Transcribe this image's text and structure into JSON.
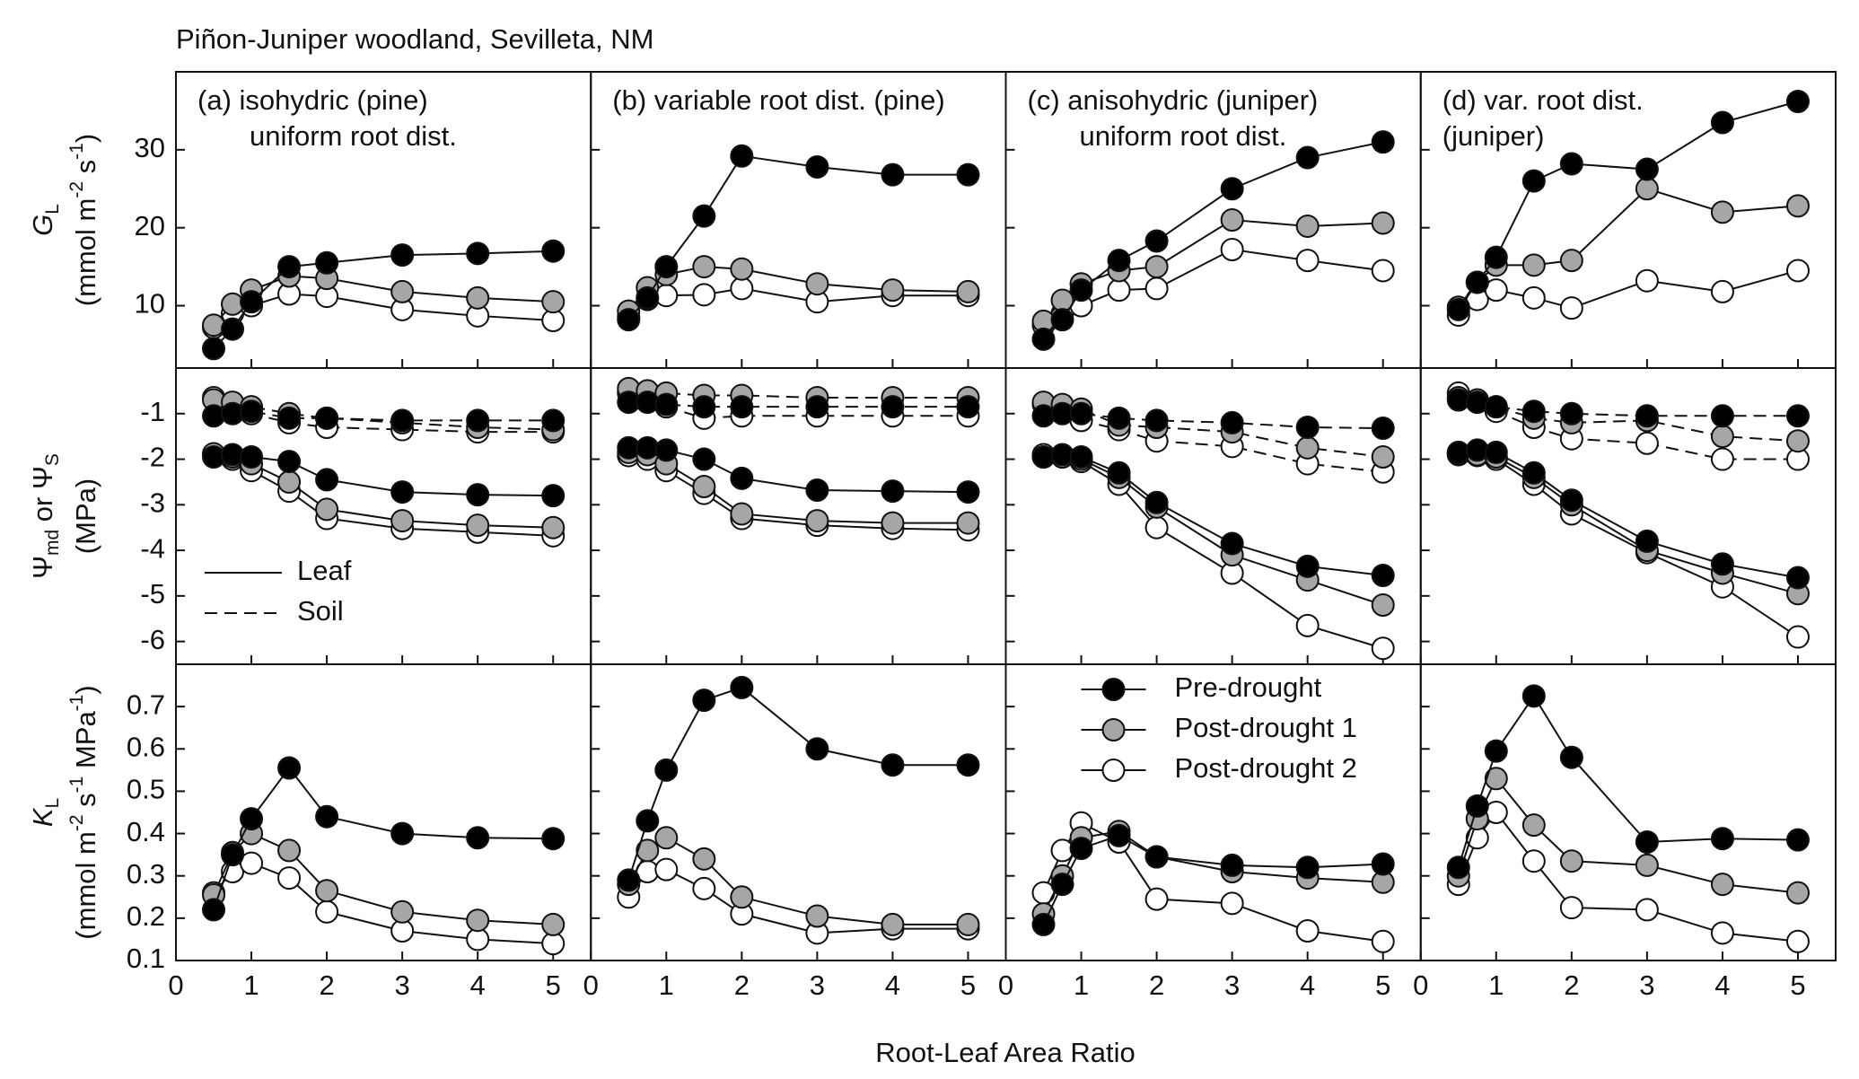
{
  "chart_data": {
    "type": "line",
    "title": "Piñon-Juniper woodland, Sevilleta, NM",
    "x_label": "Root-Leaf Area Ratio",
    "x": [
      0.5,
      0.75,
      1,
      1.5,
      2,
      3,
      4,
      5
    ],
    "xlim": [
      0,
      5.5
    ],
    "xticks": [
      0,
      1,
      2,
      3,
      4,
      5
    ],
    "series": [
      {
        "name": "Pre-drought",
        "color": "#000000"
      },
      {
        "name": "Post-drought 1",
        "color": "#a6a6a6"
      },
      {
        "name": "Post-drought 2",
        "color": "#ffffff"
      }
    ],
    "styles": [
      {
        "name": "Leaf",
        "dashed": false
      },
      {
        "name": "Soil",
        "dashed": true
      }
    ],
    "rows": [
      {
        "y_label": [
          [
            "G",
            "L"
          ],
          [
            "(mmol m",
            "-2",
            " s",
            "-1",
            ")"
          ]
        ],
        "ylim": [
          2,
          40
        ],
        "yticks": [
          10,
          20,
          30
        ],
        "panels": [
          {
            "label": [
              "(a) isohydric (pine)",
              "uniform root dist."
            ],
            "lines": [
              [
                [
                  4.5,
                  7,
                  10.5,
                  15,
                  15.5,
                  16.5,
                  16.7,
                  17
                ],
                [
                  7.5,
                  10.2,
                  12,
                  13.8,
                  13.5,
                  11.8,
                  11,
                  10.5
                ],
                [
                  7.2,
                  9,
                  10,
                  11.5,
                  11.2,
                  9.5,
                  8.7,
                  8.1
                ]
              ]
            ]
          },
          {
            "label": [
              "(b) variable root dist. (pine)"
            ],
            "lines": [
              [
                [
                  8.2,
                  11,
                  15,
                  21.5,
                  29.2,
                  27.8,
                  26.8,
                  26.8
                ],
                [
                  9.3,
                  12.3,
                  14,
                  15,
                  14.7,
                  12.8,
                  12,
                  11.8
                ],
                [
                  8.5,
                  10.8,
                  11.3,
                  11.4,
                  12.2,
                  10.5,
                  11.3,
                  11.3
                ]
              ]
            ]
          },
          {
            "label": [
              "(c) anisohydric (juniper)",
              "uniform root dist."
            ],
            "lines": [
              [
                [
                  5.7,
                  8.2,
                  12,
                  15.8,
                  18.3,
                  25,
                  29,
                  31
                ],
                [
                  8,
                  10.7,
                  12.8,
                  14.5,
                  15,
                  21,
                  20.2,
                  20.6
                ],
                [
                  7.5,
                  9,
                  10,
                  12,
                  12.2,
                  17.2,
                  15.8,
                  14.5
                ]
              ]
            ]
          },
          {
            "label": [
              "(d) var. root dist.",
              "(juniper)"
            ],
            "lines": [
              [
                [
                  9.5,
                  13,
                  16.2,
                  26,
                  28.2,
                  27.5,
                  33.5,
                  36.2
                ],
                [
                  9.8,
                  13,
                  15.2,
                  15.2,
                  15.8,
                  25,
                  22,
                  22.8
                ],
                [
                  8.8,
                  10.8,
                  12,
                  11,
                  9.7,
                  13.2,
                  11.8,
                  14.5
                ]
              ]
            ]
          }
        ]
      },
      {
        "y_label": [
          [
            "Ψ",
            "md",
            " or Ψ",
            "S"
          ],
          [
            "(MPa)"
          ]
        ],
        "ylim": [
          -6.5,
          0
        ],
        "yticks": [
          -6,
          -5,
          -4,
          -3,
          -2,
          -1
        ],
        "panels": [
          {
            "lines": [
              [
                [
                  -1.95,
                  -1.9,
                  -1.95,
                  -2.05,
                  -2.45,
                  -2.72,
                  -2.78,
                  -2.8
                ],
                [
                  -1.88,
                  -1.95,
                  -2.1,
                  -2.5,
                  -3.1,
                  -3.35,
                  -3.45,
                  -3.5
                ],
                [
                  -1.9,
                  -2,
                  -2.25,
                  -2.7,
                  -3.3,
                  -3.52,
                  -3.6,
                  -3.68
                ]
              ],
              [
                [
                  -1.05,
                  -1,
                  -0.95,
                  -1.1,
                  -1.1,
                  -1.15,
                  -1.15,
                  -1.15
                ],
                [
                  -0.7,
                  -0.75,
                  -0.85,
                  -1,
                  -1.1,
                  -1.2,
                  -1.3,
                  -1.35
                ],
                [
                  -0.65,
                  -0.9,
                  -1,
                  -1.2,
                  -1.3,
                  -1.35,
                  -1.4,
                  -1.4
                ]
              ]
            ]
          },
          {
            "lines": [
              [
                [
                  -1.75,
                  -1.75,
                  -1.8,
                  -2,
                  -2.42,
                  -2.68,
                  -2.7,
                  -2.72
                ],
                [
                  -1.85,
                  -1.9,
                  -2.1,
                  -2.6,
                  -3.2,
                  -3.35,
                  -3.4,
                  -3.4
                ],
                [
                  -1.92,
                  -2,
                  -2.25,
                  -2.75,
                  -3.3,
                  -3.45,
                  -3.52,
                  -3.55
                ]
              ],
              [
                [
                  -0.75,
                  -0.75,
                  -0.8,
                  -0.85,
                  -0.85,
                  -0.85,
                  -0.85,
                  -0.85
                ],
                [
                  -0.45,
                  -0.5,
                  -0.55,
                  -0.6,
                  -0.6,
                  -0.65,
                  -0.65,
                  -0.65
                ],
                [
                  -0.55,
                  -0.65,
                  -0.85,
                  -1.1,
                  -1.05,
                  -1.05,
                  -1.05,
                  -1.05
                ]
              ]
            ]
          },
          {
            "lines": [
              [
                [
                  -1.95,
                  -1.9,
                  -1.95,
                  -2.3,
                  -2.95,
                  -3.85,
                  -4.35,
                  -4.55
                ],
                [
                  -1.95,
                  -1.95,
                  -2,
                  -2.4,
                  -3.05,
                  -4.1,
                  -4.65,
                  -5.2
                ],
                [
                  -1.9,
                  -1.95,
                  -2.05,
                  -2.55,
                  -3.5,
                  -4.5,
                  -5.65,
                  -6.15
                ]
              ],
              [
                [
                  -1.05,
                  -1,
                  -1,
                  -1.1,
                  -1.15,
                  -1.2,
                  -1.3,
                  -1.32
                ],
                [
                  -0.75,
                  -0.8,
                  -0.9,
                  -1.25,
                  -1.3,
                  -1.4,
                  -1.75,
                  -1.95
                ],
                [
                  -0.8,
                  -0.95,
                  -1.15,
                  -1.35,
                  -1.6,
                  -1.72,
                  -2.1,
                  -2.28
                ]
              ]
            ]
          },
          {
            "lines": [
              [
                [
                  -1.85,
                  -1.8,
                  -1.85,
                  -2.3,
                  -2.9,
                  -3.8,
                  -4.3,
                  -4.6
                ],
                [
                  -1.88,
                  -1.9,
                  -1.95,
                  -2.4,
                  -3,
                  -4,
                  -4.5,
                  -4.95
                ],
                [
                  -1.9,
                  -1.92,
                  -2,
                  -2.55,
                  -3.2,
                  -4.05,
                  -4.8,
                  -5.9
                ]
              ],
              [
                [
                  -0.7,
                  -0.75,
                  -0.85,
                  -0.95,
                  -1,
                  -1.05,
                  -1.05,
                  -1.05
                ],
                [
                  -0.65,
                  -0.7,
                  -0.85,
                  -1.1,
                  -1.2,
                  -1.15,
                  -1.5,
                  -1.6
                ],
                [
                  -0.55,
                  -0.75,
                  -0.95,
                  -1.3,
                  -1.55,
                  -1.65,
                  -2,
                  -2
                ]
              ]
            ]
          }
        ]
      },
      {
        "y_label": [
          [
            "K",
            "L"
          ],
          [
            "(mmol m",
            "-2",
            " s",
            "-1",
            " MPa",
            "-1",
            ")"
          ]
        ],
        "ylim": [
          0.1,
          0.8
        ],
        "yticks": [
          0.1,
          0.2,
          0.3,
          0.4,
          0.5,
          0.6,
          0.7
        ],
        "panels": [
          {
            "lines": [
              [
                [
                  0.22,
                  0.35,
                  0.435,
                  0.555,
                  0.44,
                  0.4,
                  0.39,
                  0.388
                ],
                [
                  0.255,
                  0.355,
                  0.4,
                  0.36,
                  0.265,
                  0.215,
                  0.195,
                  0.185
                ],
                [
                  0.26,
                  0.31,
                  0.33,
                  0.295,
                  0.215,
                  0.17,
                  0.15,
                  0.14
                ]
              ]
            ]
          },
          {
            "lines": [
              [
                [
                  0.29,
                  0.43,
                  0.55,
                  0.715,
                  0.745,
                  0.6,
                  0.562,
                  0.562
                ],
                [
                  0.28,
                  0.36,
                  0.39,
                  0.34,
                  0.25,
                  0.205,
                  0.185,
                  0.185
                ],
                [
                  0.25,
                  0.31,
                  0.315,
                  0.27,
                  0.21,
                  0.165,
                  0.175,
                  0.175
                ]
              ]
            ]
          },
          {
            "lines": [
              [
                [
                  0.185,
                  0.28,
                  0.365,
                  0.395,
                  0.345,
                  0.325,
                  0.32,
                  0.328
                ],
                [
                  0.21,
                  0.3,
                  0.39,
                  0.405,
                  0.345,
                  0.31,
                  0.295,
                  0.285
                ],
                [
                  0.26,
                  0.36,
                  0.425,
                  0.38,
                  0.245,
                  0.235,
                  0.17,
                  0.145
                ]
              ]
            ]
          },
          {
            "lines": [
              [
                [
                  0.32,
                  0.465,
                  0.595,
                  0.725,
                  0.58,
                  0.38,
                  0.388,
                  0.385
                ],
                [
                  0.3,
                  0.435,
                  0.53,
                  0.42,
                  0.335,
                  0.325,
                  0.28,
                  0.26
                ],
                [
                  0.28,
                  0.39,
                  0.45,
                  0.335,
                  0.225,
                  0.22,
                  0.165,
                  0.145
                ]
              ]
            ]
          }
        ]
      }
    ]
  }
}
